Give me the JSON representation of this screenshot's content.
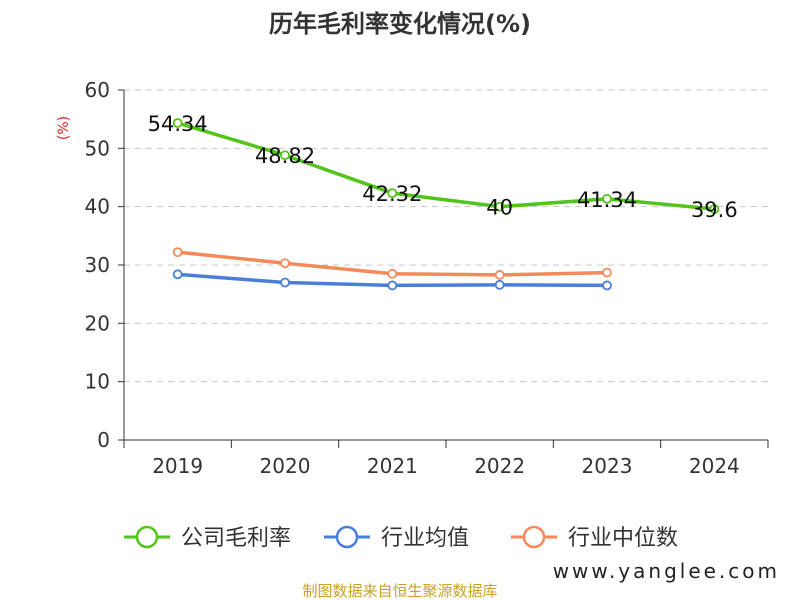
{
  "chart_data": {
    "type": "line",
    "title": "历年毛利率变化情况(%)",
    "ylabel": "(%)",
    "xlabel": "",
    "ylim": [
      0,
      60
    ],
    "yticks": [
      0,
      10,
      20,
      30,
      40,
      50,
      60
    ],
    "grid": true,
    "legend_position": "bottom",
    "categories": [
      "2019",
      "2020",
      "2021",
      "2022",
      "2023",
      "2024"
    ],
    "series": [
      {
        "name": "公司毛利率",
        "color": "#52c41a",
        "values": [
          54.34,
          48.82,
          42.32,
          40,
          41.34,
          39.6
        ],
        "labels": [
          "54.34",
          "48.82",
          "42.32",
          "40",
          "41.34",
          "39.6"
        ]
      },
      {
        "name": "行业均值",
        "color": "#4a7fd9",
        "values": [
          28.4,
          27.0,
          26.5,
          26.6,
          26.5,
          null
        ]
      },
      {
        "name": "行业中位数",
        "color": "#f5895a",
        "values": [
          32.2,
          30.3,
          28.5,
          28.3,
          28.7,
          null
        ]
      }
    ]
  },
  "footer": {
    "source": "制图数据来自恒生聚源数据库",
    "source_color": "#c9a227",
    "watermark": "www.yanglee.com"
  }
}
